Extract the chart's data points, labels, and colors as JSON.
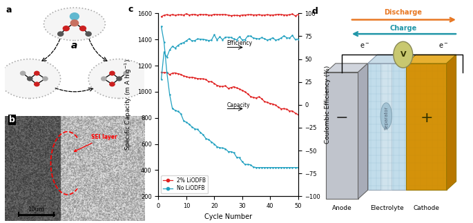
{
  "panel_c": {
    "xlabel": "Cycle Number",
    "ylabel_left": "Specific Capacity (m A h g$^{-1}$)",
    "ylabel_right": "Coulombic Efficiency (%)",
    "xlim": [
      0,
      50
    ],
    "ylim_left": [
      200,
      1600
    ],
    "ylim_right": [
      -100,
      100
    ],
    "yticks_left": [
      200,
      400,
      600,
      800,
      1000,
      1200,
      1400,
      1600
    ],
    "yticks_right": [
      -100,
      -75,
      -50,
      -25,
      0,
      25,
      50,
      75,
      100
    ],
    "xticks": [
      0,
      10,
      20,
      30,
      40,
      50
    ],
    "legend": [
      "2% LiODFB",
      "No LiODFB"
    ],
    "color_red": "#e02020",
    "color_cyan": "#20a0c0",
    "efficiency_label": "Efficiency",
    "capacity_label": "Capacity"
  },
  "layout": {
    "fig_width": 6.85,
    "fig_height": 3.23,
    "dpi": 100
  },
  "panel_d": {
    "discharge_color": "#e87722",
    "charge_color": "#2196A8",
    "anode_color": "#b0b8c8",
    "electrolyte_color": "#b8d8e8",
    "cathode_color": "#d4920a",
    "separator_color": "#d0dce8",
    "volt_color": "#c8c870"
  }
}
